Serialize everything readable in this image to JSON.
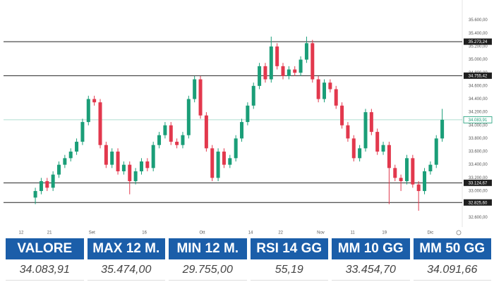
{
  "chart_data": {
    "type": "candlestick",
    "up_color": "#1a9e78",
    "down_color": "#e2384d",
    "xlim": [
      -3.6,
      71.8
    ],
    "ylim": [
      32420,
      35800
    ],
    "yticks": [
      {
        "value": 32600,
        "label": "32.600,00"
      },
      {
        "value": 32800,
        "label": "32.800,00"
      },
      {
        "value": 33000,
        "label": "33.000,00"
      },
      {
        "value": 33200,
        "label": "33.200,00"
      },
      {
        "value": 33400,
        "label": "33.400,00"
      },
      {
        "value": 33600,
        "label": "33.600,00"
      },
      {
        "value": 33800,
        "label": "33.800,00"
      },
      {
        "value": 34000,
        "label": "34.000,00"
      },
      {
        "value": 34200,
        "label": "34.200,00"
      },
      {
        "value": 34400,
        "label": "34.400,00"
      },
      {
        "value": 34600,
        "label": "34.600,00"
      },
      {
        "value": 34800,
        "label": "34.800,00"
      },
      {
        "value": 35000,
        "label": "35.000,00"
      },
      {
        "value": 35200,
        "label": "35.200,00"
      },
      {
        "value": 35400,
        "label": "35.400,00"
      },
      {
        "value": 35600,
        "label": "35.600,00"
      }
    ],
    "xticks": [
      {
        "value": -2.4,
        "label": "12"
      },
      {
        "value": 2.4,
        "label": "21"
      },
      {
        "value": 9.6,
        "label": "Set"
      },
      {
        "value": 18.5,
        "label": "16"
      },
      {
        "value": 28.3,
        "label": "Ott"
      },
      {
        "value": 36.5,
        "label": "14"
      },
      {
        "value": 41.6,
        "label": "22"
      },
      {
        "value": 48.4,
        "label": "Nov"
      },
      {
        "value": 53.8,
        "label": "11"
      },
      {
        "value": 59.2,
        "label": "19"
      },
      {
        "value": 67,
        "label": "Dic"
      }
    ],
    "levels": [
      {
        "value": 35273.24,
        "label": "35.273,24"
      },
      {
        "value": 34755.42,
        "label": "34.755,42"
      },
      {
        "value": 33124.67,
        "label": "33.124,67"
      },
      {
        "value": 32825.6,
        "label": "32.825,60"
      }
    ],
    "last": {
      "value": 34083.91,
      "label": "34.083,91",
      "color": "#1a9e78"
    },
    "open": [
      32900,
      33000,
      33150,
      33050,
      33250,
      33400,
      33500,
      33600,
      33750,
      34050,
      34400,
      34350,
      33700,
      33400,
      33600,
      33300,
      33400,
      33150,
      33300,
      33450,
      33350,
      33700,
      33850,
      34000,
      33750,
      33700,
      33850,
      34400,
      34700,
      34150,
      33650,
      33200,
      33600,
      33400,
      33500,
      33800,
      34050,
      34300,
      34600,
      34900,
      34700,
      35200,
      34900,
      34750,
      34850,
      34800,
      35000,
      35250,
      34700,
      34400,
      34650,
      34550,
      34300,
      34000,
      33800,
      33500,
      33650,
      34200,
      33900,
      33600,
      33700,
      33350,
      33200,
      33150,
      33500,
      33100,
      33000,
      33300,
      33400,
      33800
    ],
    "high": [
      33050,
      33200,
      33200,
      33300,
      33450,
      33550,
      33650,
      33800,
      34100,
      34450,
      34450,
      34400,
      33750,
      33650,
      33650,
      33450,
      33450,
      33350,
      33500,
      33500,
      33750,
      33900,
      34050,
      34050,
      33800,
      33900,
      34450,
      34750,
      34750,
      34200,
      33700,
      33650,
      33650,
      33550,
      33850,
      34100,
      34350,
      34650,
      34950,
      34950,
      35350,
      35250,
      34950,
      34900,
      34900,
      35050,
      35350,
      35300,
      34750,
      34700,
      34700,
      34600,
      34350,
      34050,
      33850,
      33700,
      34250,
      34250,
      33950,
      33750,
      33750,
      33400,
      33250,
      33550,
      33550,
      33150,
      33350,
      33450,
      33850,
      34250
    ],
    "low": [
      32800,
      32950,
      33000,
      33000,
      33200,
      33350,
      33450,
      33550,
      33700,
      34000,
      34300,
      33650,
      33350,
      33350,
      33250,
      33250,
      32950,
      33100,
      33250,
      33300,
      33300,
      33650,
      33800,
      33700,
      33650,
      33650,
      33800,
      34350,
      34100,
      33600,
      33150,
      33150,
      33350,
      33350,
      33450,
      33750,
      34000,
      34250,
      34550,
      34650,
      34650,
      34850,
      34700,
      34700,
      34750,
      34750,
      34950,
      34650,
      34350,
      34350,
      34500,
      34250,
      33950,
      33750,
      33450,
      33450,
      33600,
      33850,
      33550,
      33550,
      32800,
      33150,
      33000,
      33100,
      33050,
      32700,
      32950,
      33250,
      33350,
      33750
    ],
    "close": [
      33000,
      33150,
      33050,
      33250,
      33400,
      33500,
      33600,
      33750,
      34050,
      34400,
      34350,
      33700,
      33400,
      33600,
      33300,
      33400,
      33150,
      33300,
      33450,
      33350,
      33700,
      33850,
      34000,
      33750,
      33700,
      33850,
      34400,
      34700,
      34150,
      33650,
      33200,
      33600,
      33400,
      33500,
      33800,
      34050,
      34300,
      34600,
      34900,
      34700,
      35200,
      34900,
      34750,
      34850,
      34800,
      35000,
      35250,
      34700,
      34400,
      34650,
      34550,
      34300,
      34000,
      33800,
      33500,
      33650,
      34200,
      33900,
      33600,
      33700,
      33350,
      33200,
      33150,
      33500,
      33100,
      33000,
      33300,
      33400,
      33800,
      34083.91
    ]
  },
  "table": {
    "headers": [
      "VALORE",
      "MAX 12 M.",
      "MIN 12 M.",
      "RSI 14 GG",
      "MM 10 GG",
      "MM 50 GG"
    ],
    "values": [
      "34.083,91",
      "35.474,00",
      "29.755,00",
      "55,19",
      "33.454,70",
      "34.091,66"
    ]
  }
}
